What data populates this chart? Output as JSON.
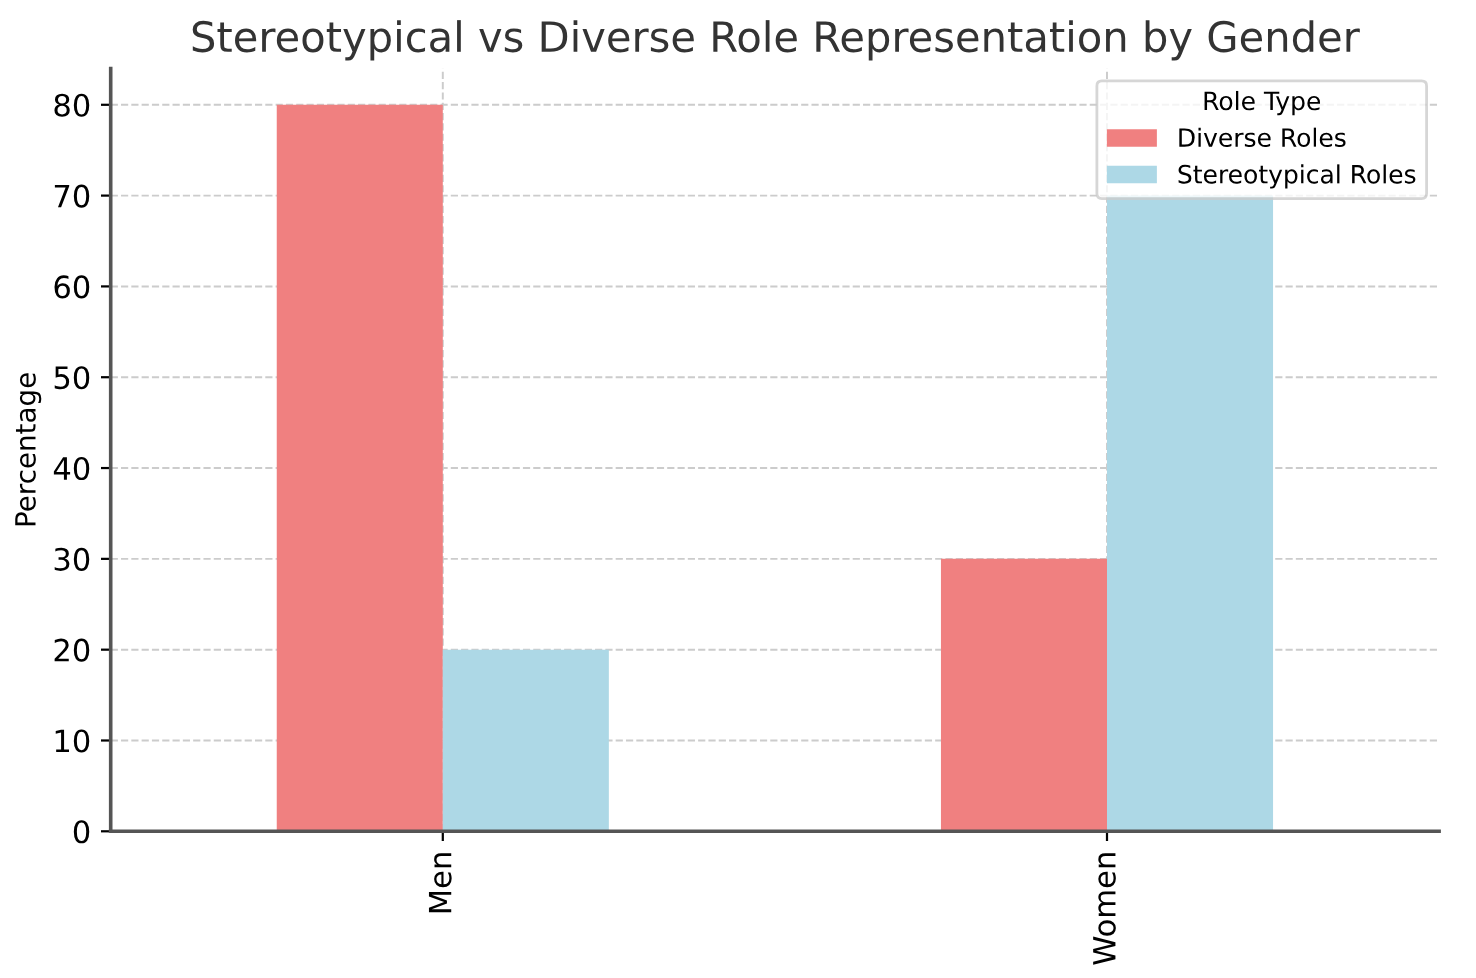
{
  "chart_data": {
    "type": "bar",
    "title": "Stereotypical vs Diverse Role Representation by Gender",
    "ylabel": "Percentage",
    "legend_title": "Role Type",
    "categories": [
      "Men",
      "Women"
    ],
    "series": [
      {
        "name": "Diverse Roles",
        "color": "#f08080",
        "values": [
          80,
          30
        ]
      },
      {
        "name": "Stereotypical Roles",
        "color": "#add8e6",
        "values": [
          20,
          70
        ]
      }
    ],
    "ylim": [
      0,
      84
    ],
    "yticks": [
      0,
      10,
      20,
      30,
      40,
      50,
      60,
      70,
      80
    ],
    "grid": true,
    "legend": "top right"
  }
}
